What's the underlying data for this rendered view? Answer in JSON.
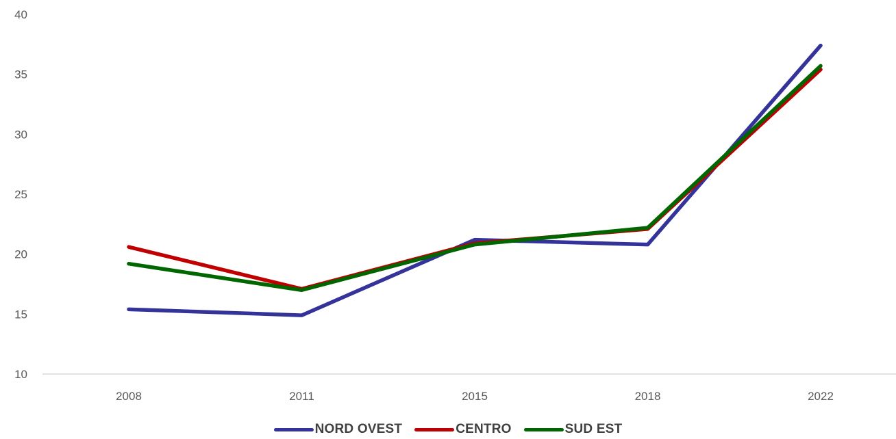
{
  "chart_data": {
    "type": "line",
    "title": "",
    "xlabel": "",
    "ylabel": "",
    "categories": [
      "2008",
      "2011",
      "2015",
      "2018",
      "2022"
    ],
    "ylim": [
      10,
      40
    ],
    "yticks": [
      10,
      15,
      20,
      25,
      30,
      35,
      40
    ],
    "grid": false,
    "legend_position": "bottom",
    "series": [
      {
        "name": "NORD OVEST",
        "color": "#333399",
        "values": [
          15.4,
          14.9,
          21.2,
          20.8,
          37.4
        ]
      },
      {
        "name": "CENTRO",
        "color": "#C00000",
        "values": [
          20.6,
          17.1,
          20.9,
          22.1,
          35.4
        ]
      },
      {
        "name": "SUD EST",
        "color": "#006600",
        "values": [
          19.2,
          17.0,
          20.8,
          22.2,
          35.7
        ]
      }
    ]
  }
}
